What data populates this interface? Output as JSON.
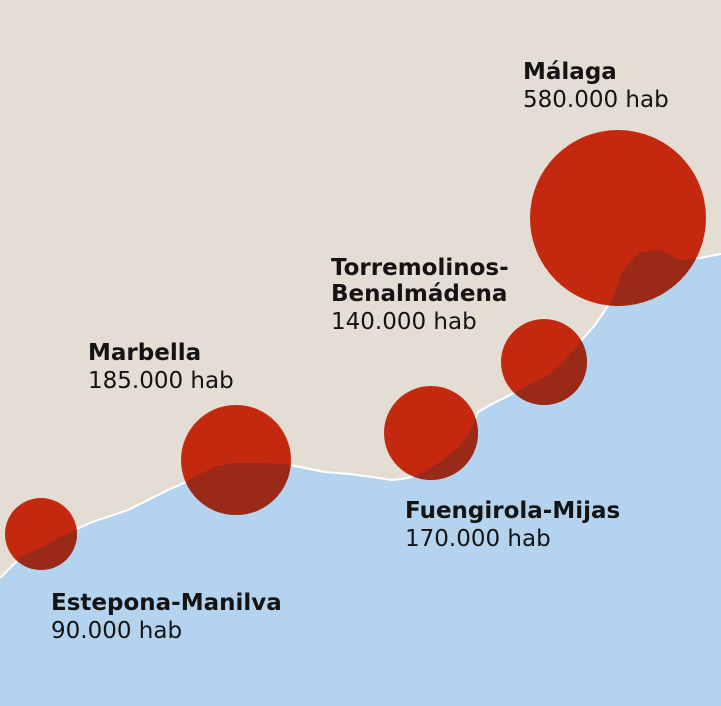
{
  "map": {
    "colors": {
      "land": "#e3ddd4",
      "sea": "#b4d3ee",
      "city_marker": "#c4280f",
      "marker_over_sea": "#9a2a18"
    },
    "cities": [
      {
        "id": "malaga",
        "name_lines": [
          "Málaga"
        ],
        "population": "580.000 hab"
      },
      {
        "id": "torremolinos",
        "name_lines": [
          "Torremolinos-",
          "Benalmádena"
        ],
        "population": "140.000 hab"
      },
      {
        "id": "marbella",
        "name_lines": [
          "Marbella"
        ],
        "population": "185.000 hab"
      },
      {
        "id": "fuengirola",
        "name_lines": [
          "Fuengirola-Mijas"
        ],
        "population": "170.000 hab"
      },
      {
        "id": "estepona",
        "name_lines": [
          "Estepona-Manilva"
        ],
        "population": "90.000 hab"
      }
    ]
  }
}
